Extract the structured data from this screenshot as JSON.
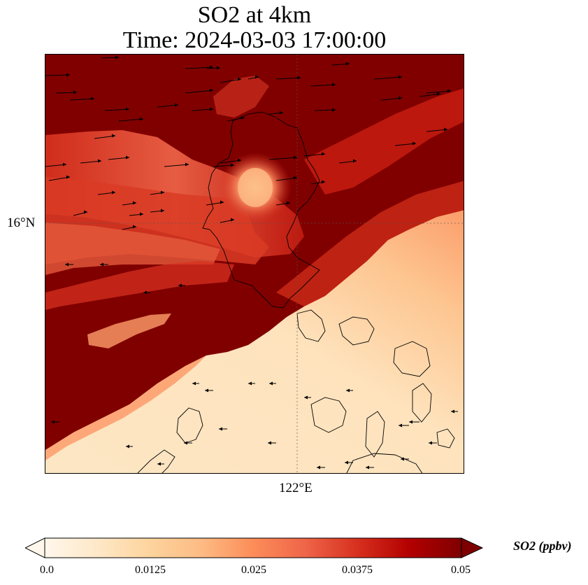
{
  "title": {
    "line1": "SO2 at 4km",
    "line2": "Time: 2024-03-03 17:00:00"
  },
  "map": {
    "lat_tick": "16°N",
    "lon_tick": "122°E",
    "variable": "SO2",
    "level": "4km",
    "features": [
      "SO2 concentration field",
      "coastlines",
      "wind vectors",
      "graticule lines"
    ]
  },
  "colorbar": {
    "label": "SO2 (ppbv)",
    "ticks": [
      "0.0",
      "0.0125",
      "0.025",
      "0.0375",
      "0.05"
    ],
    "colormap": "OrRd",
    "extend": "both",
    "colors": [
      "#fff7ec",
      "#fee8c8",
      "#fdd49e",
      "#fdbb84",
      "#fc8d59",
      "#ef6548",
      "#d7301f",
      "#b30000",
      "#7f0000"
    ]
  }
}
